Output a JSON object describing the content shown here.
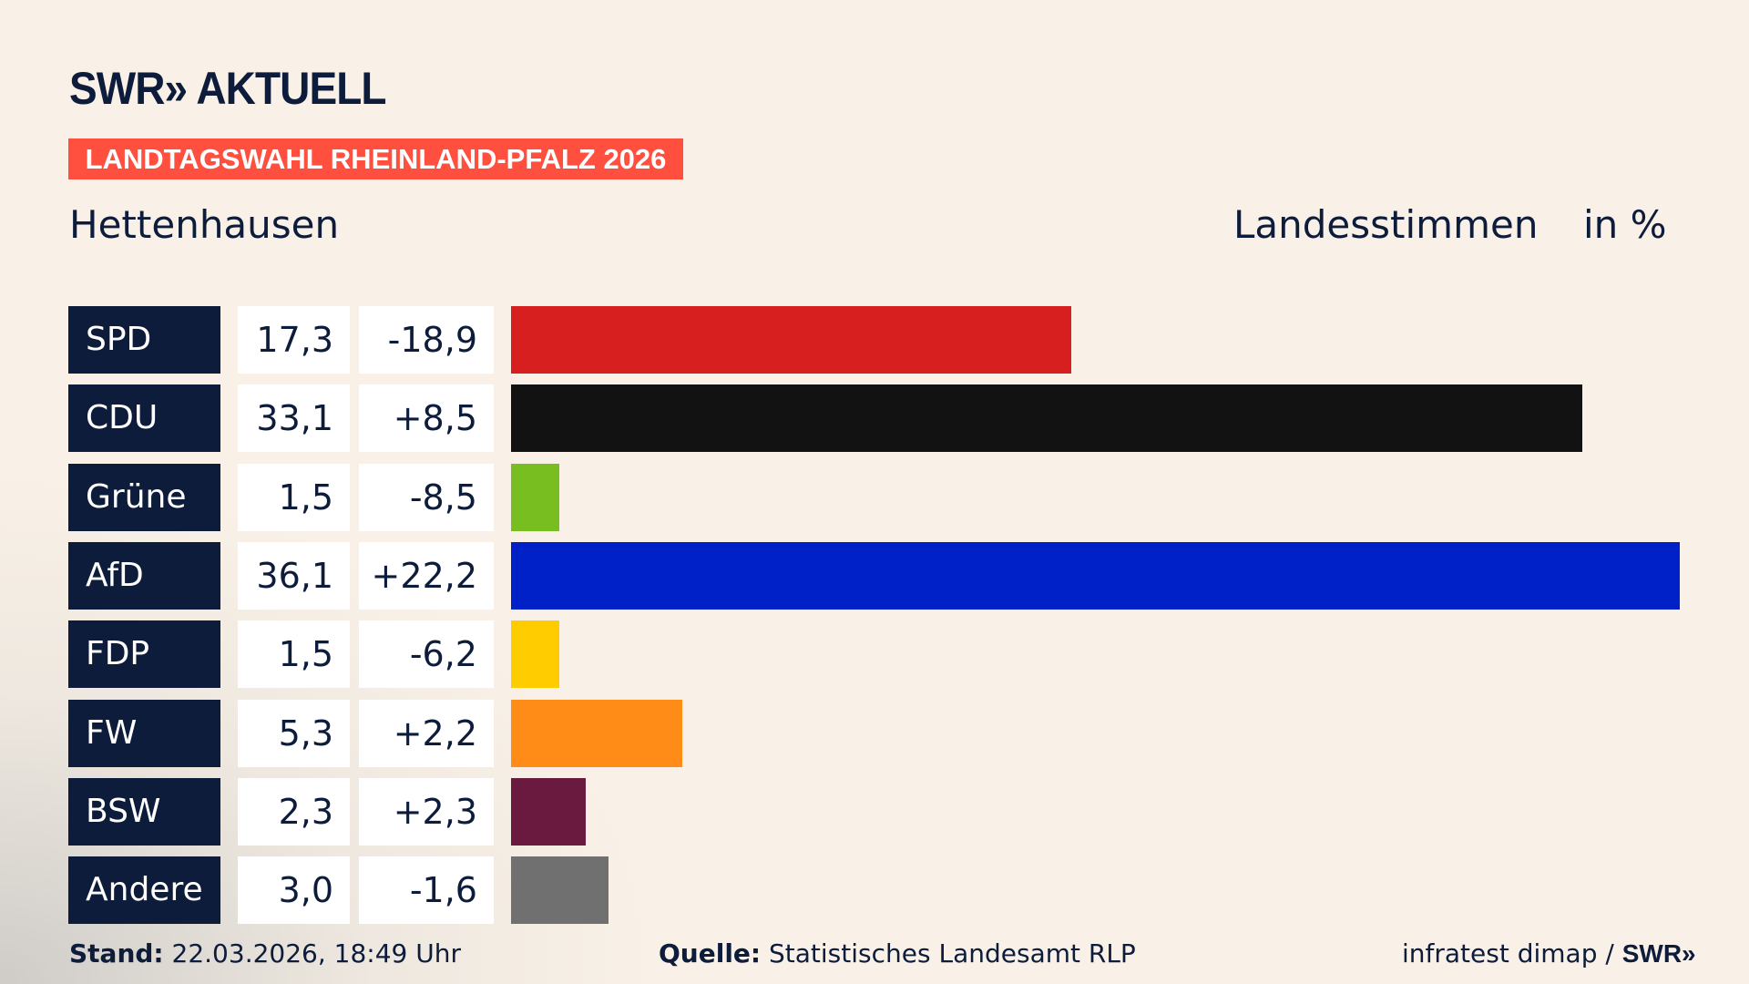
{
  "header": {
    "logo": "SWR» AKTUELL",
    "banner": "LANDTAGSWAHL RHEINLAND-PFALZ 2026",
    "place": "Hettenhausen",
    "metric": "Landesstimmen",
    "unit": "in %"
  },
  "chart_data": {
    "type": "bar",
    "orientation": "horizontal",
    "categories": [
      "SPD",
      "CDU",
      "Grüne",
      "AfD",
      "FDP",
      "FW",
      "BSW",
      "Andere"
    ],
    "values": [
      17.3,
      33.1,
      1.5,
      36.1,
      1.5,
      5.3,
      2.3,
      3.0
    ],
    "value_labels": [
      "17,3",
      "33,1",
      "1,5",
      "36,1",
      "1,5",
      "5,3",
      "2,3",
      "3,0"
    ],
    "diff_labels": [
      "-18,9",
      "+8,5",
      "-8,5",
      "+22,2",
      "-6,2",
      "+2,2",
      "+2,3",
      "-1,6"
    ],
    "diffs": [
      -18.9,
      8.5,
      -8.5,
      22.2,
      -6.2,
      2.2,
      2.3,
      -1.6
    ],
    "colors": [
      "#d71f1f",
      "#121212",
      "#78be20",
      "#0021c8",
      "#ffcc00",
      "#ff8c17",
      "#6a1a3e",
      "#707070"
    ],
    "xlim": [
      0,
      36.1
    ]
  },
  "footer": {
    "stand_label": "Stand:",
    "stand": "22.03.2026, 18:49 Uhr",
    "source_label": "Quelle:",
    "source": "Statistisches Landesamt RLP",
    "credit": "infratest dimap /",
    "credit_logo": "SWR»"
  }
}
